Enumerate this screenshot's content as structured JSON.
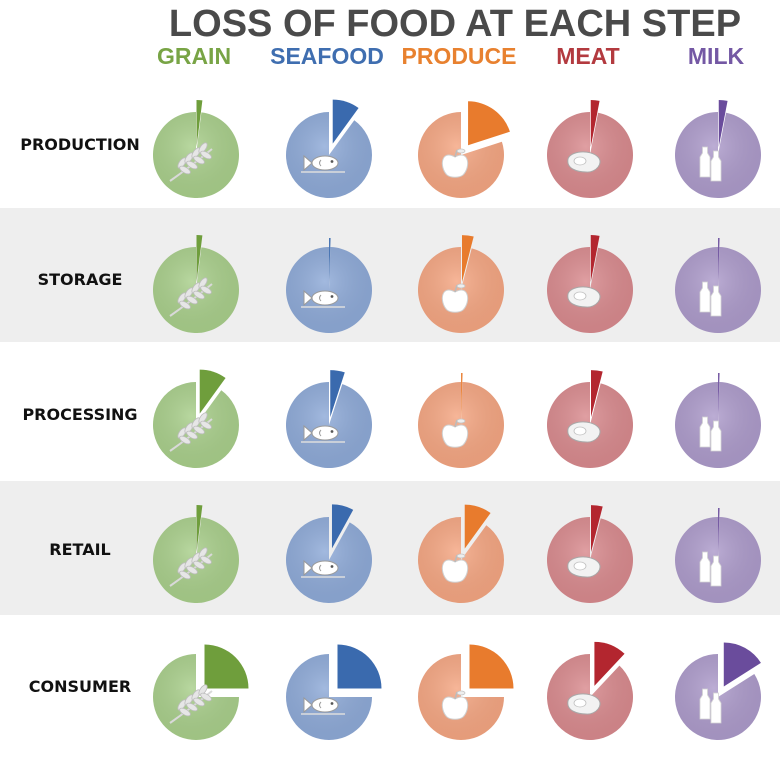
{
  "chart_data": {
    "type": "pie",
    "title": "LOSS OF FOOD AT EACH STEP",
    "columns": [
      {
        "label": "GRAIN",
        "icon": "wheat-icon",
        "base": "#a9cf8b",
        "wedge": "#6f9e3c",
        "text": "#78a445"
      },
      {
        "label": "SEAFOOD",
        "icon": "fish-icon",
        "base": "#8eaad8",
        "wedge": "#3a6aae",
        "text": "#3f6eb0"
      },
      {
        "label": "PRODUCE",
        "icon": "apple-icon",
        "base": "#f5a682",
        "wedge": "#e87b2d",
        "text": "#e8812f"
      },
      {
        "label": "MEAT",
        "icon": "steak-icon",
        "base": "#d98a8e",
        "wedge": "#b3262f",
        "text": "#b33a3f"
      },
      {
        "label": "MILK",
        "icon": "bottles-icon",
        "base": "#ad9bcb",
        "wedge": "#6a4c9c",
        "text": "#7458a4"
      }
    ],
    "rows": [
      {
        "label": "PRODUCTION",
        "loss_pct": [
          2,
          10,
          20,
          3,
          3
        ]
      },
      {
        "label": "STORAGE",
        "loss_pct": [
          2,
          0.5,
          4,
          3,
          0.5
        ]
      },
      {
        "label": "PROCESSING",
        "loss_pct": [
          10,
          5,
          0.5,
          4,
          0.5
        ]
      },
      {
        "label": "RETAIL",
        "loss_pct": [
          2,
          8,
          10,
          4,
          0.5
        ]
      },
      {
        "label": "CONSUMER",
        "loss_pct": [
          25,
          25,
          25,
          12,
          16
        ]
      }
    ]
  }
}
